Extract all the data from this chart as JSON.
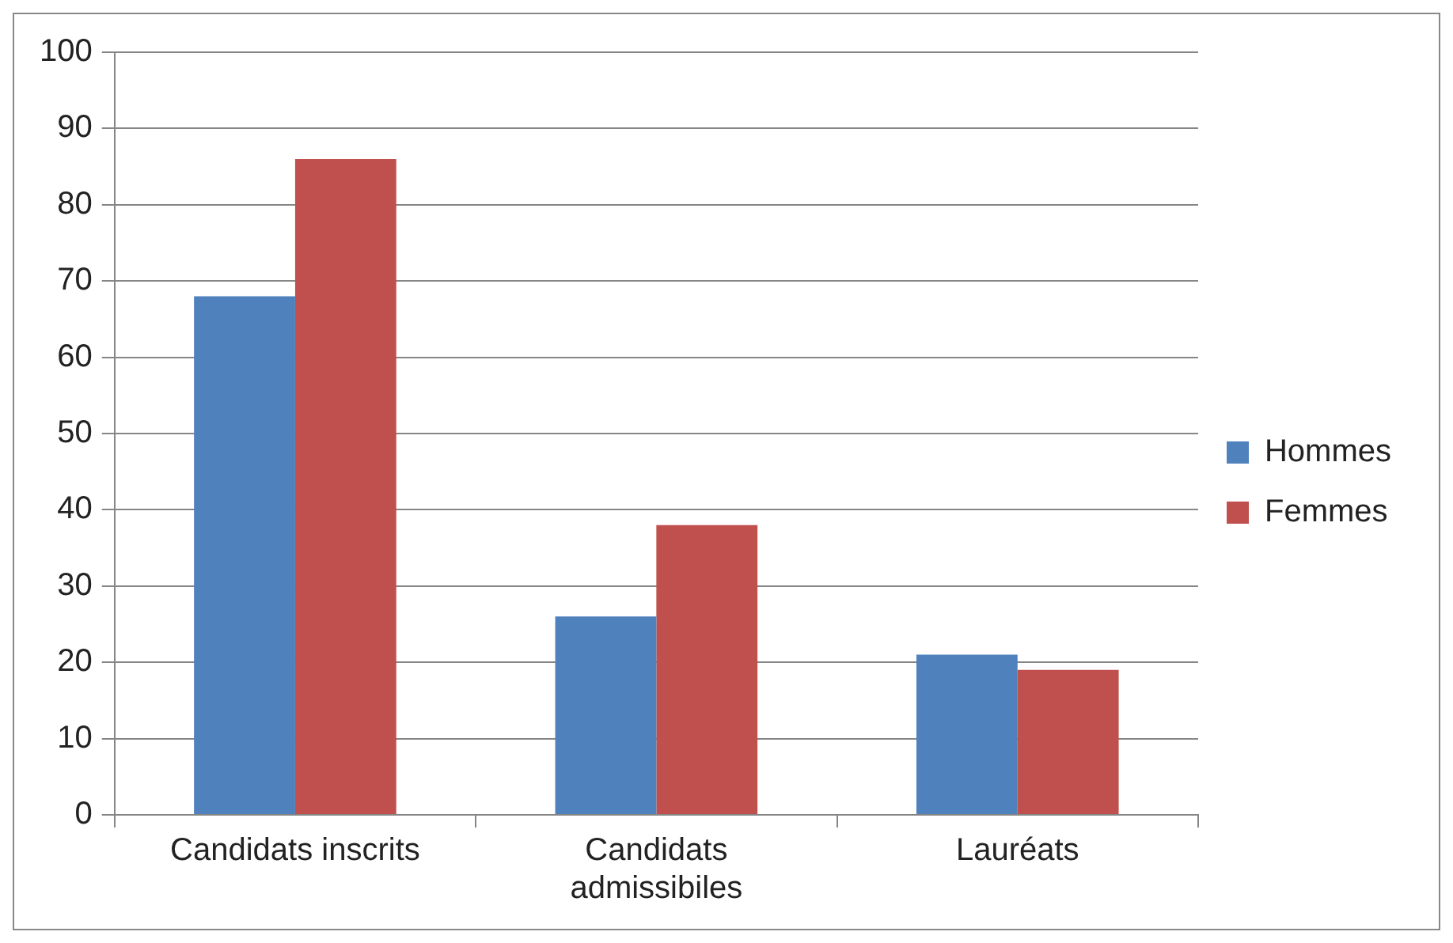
{
  "chart_data": {
    "type": "bar",
    "categories": [
      "Candidats inscrits",
      "Candidats admissibiles",
      "Lauréats"
    ],
    "series": [
      {
        "name": "Hommes",
        "color": "#4f81bd",
        "values": [
          68,
          26,
          21
        ]
      },
      {
        "name": "Femmes",
        "color": "#c0504d",
        "values": [
          86,
          38,
          19
        ]
      }
    ],
    "ylim": [
      0,
      100
    ],
    "yticks": [
      0,
      10,
      20,
      30,
      40,
      50,
      60,
      70,
      80,
      90,
      100
    ],
    "grid": "y",
    "legend": "right"
  }
}
